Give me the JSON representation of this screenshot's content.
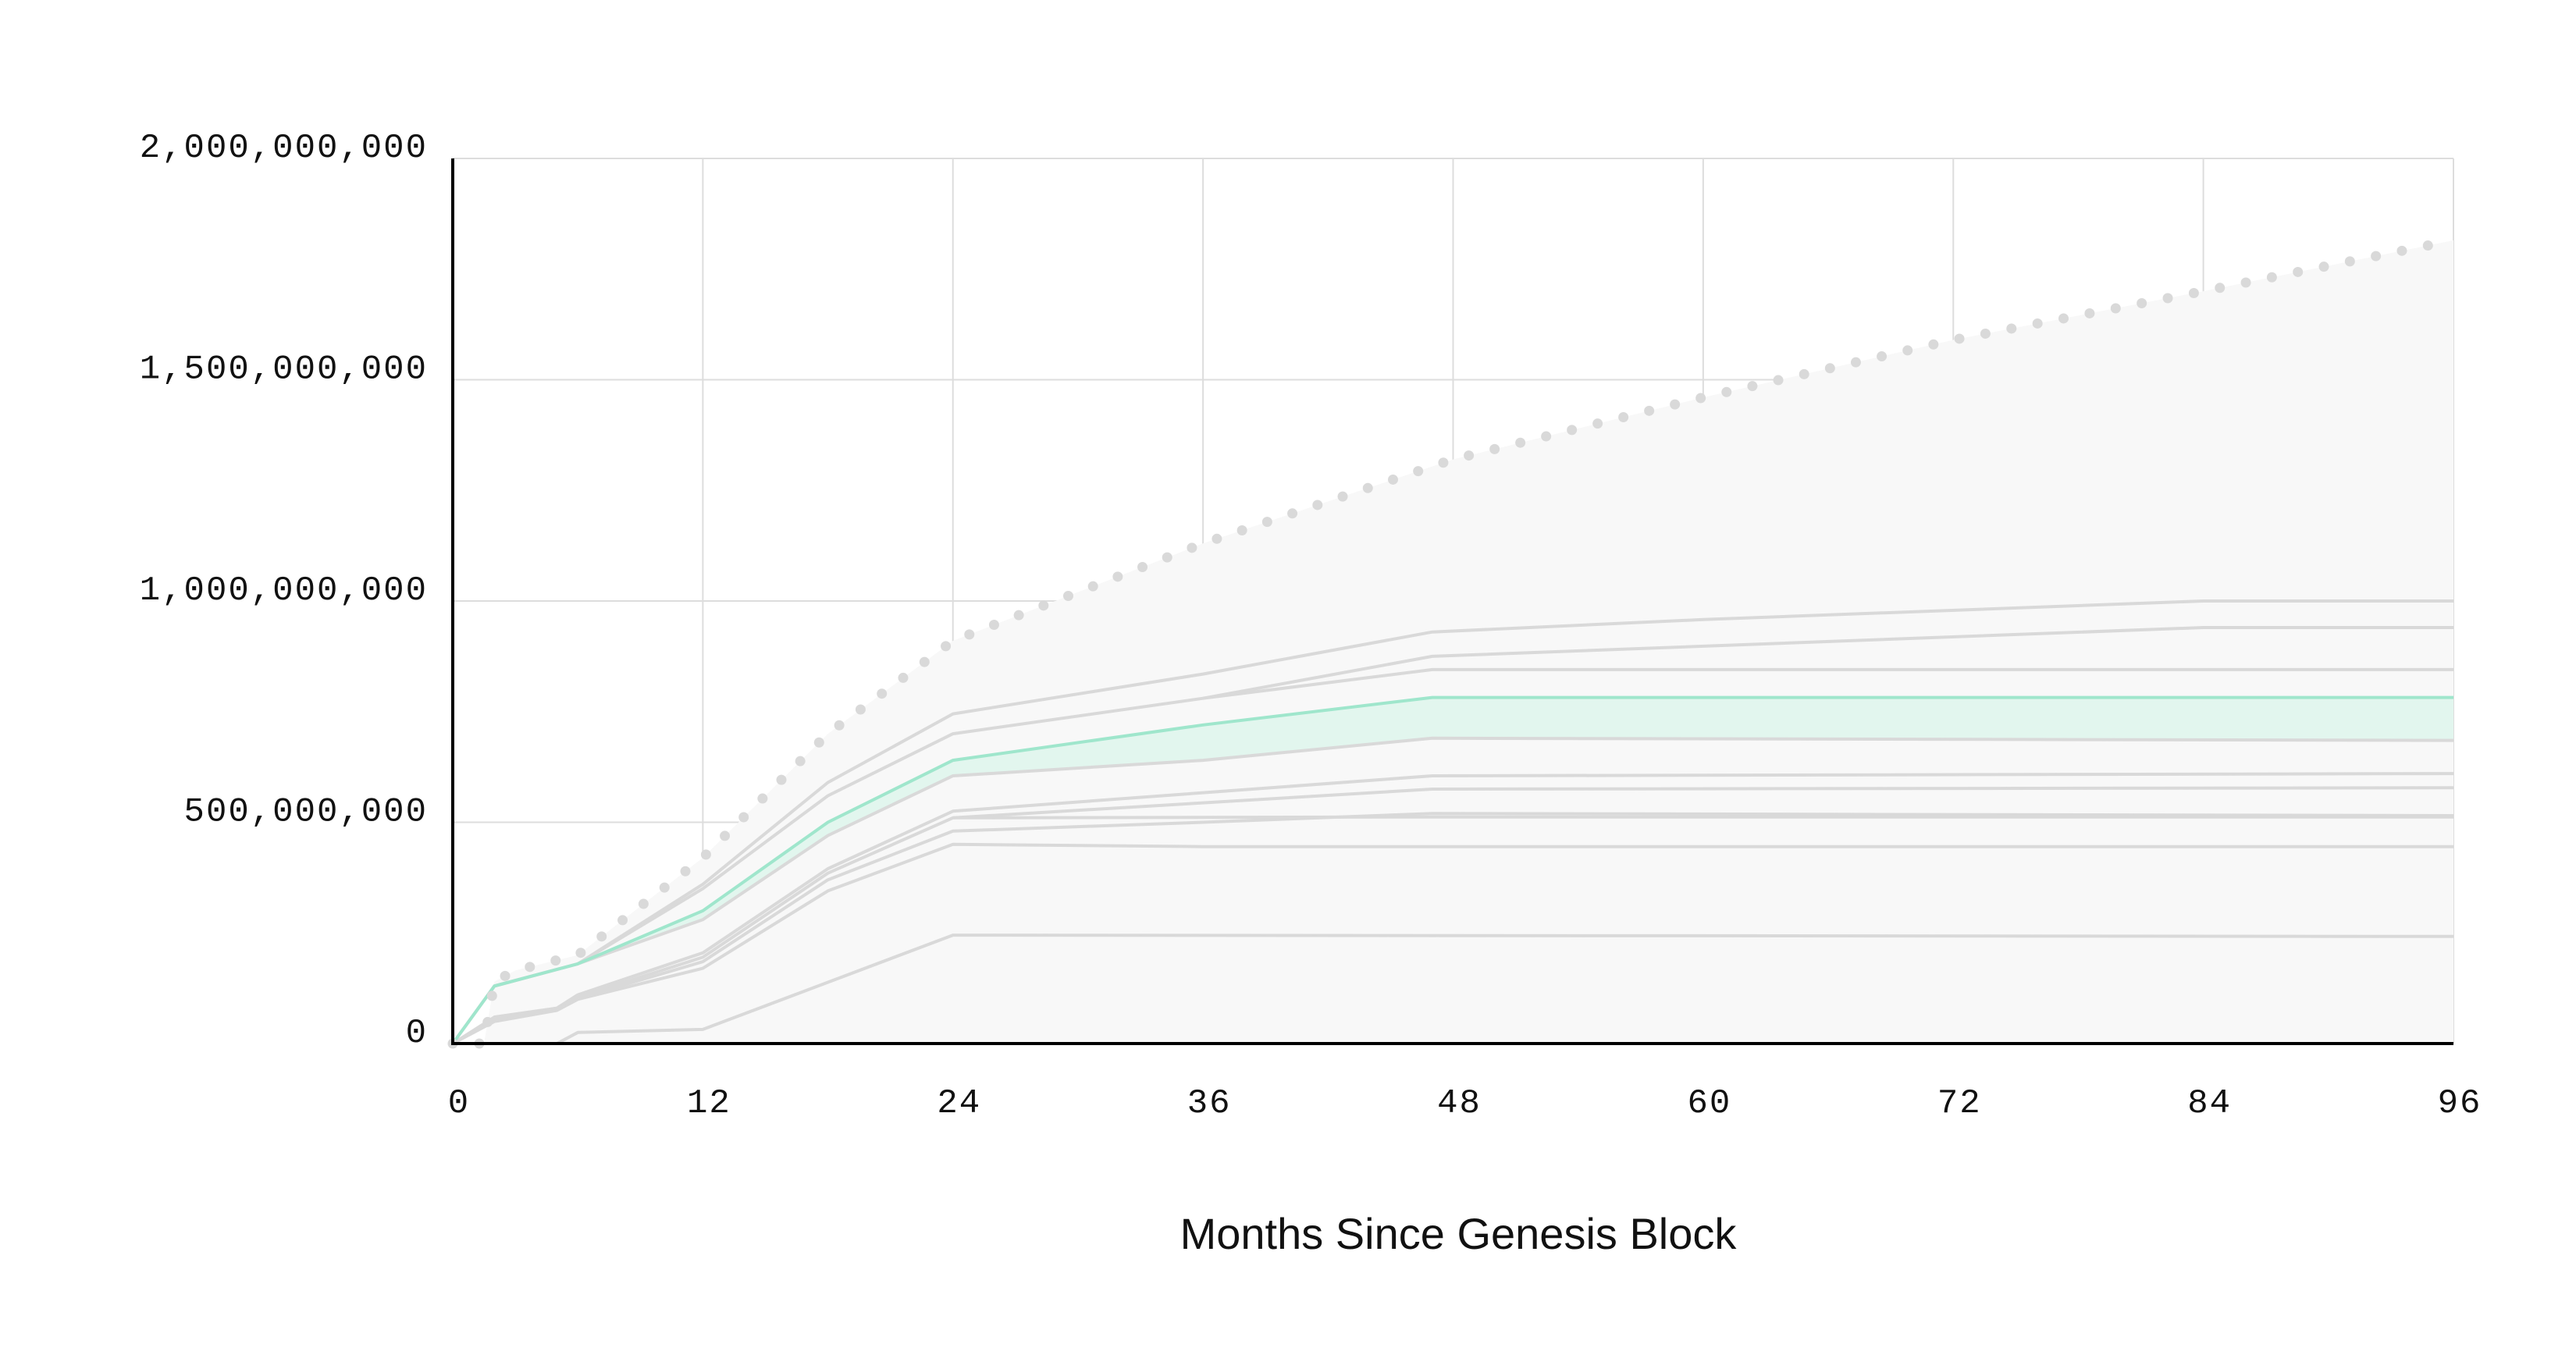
{
  "chart_data": {
    "type": "line",
    "title": "",
    "xlabel": "Months Since Genesis Block",
    "ylabel": "",
    "xlim": [
      0,
      96
    ],
    "ylim": [
      0,
      2000000000
    ],
    "x_ticks": [
      0,
      12,
      24,
      36,
      48,
      60,
      72,
      84,
      96
    ],
    "y_ticks": [
      0,
      500000000,
      1000000000,
      1500000000,
      2000000000
    ],
    "y_tick_labels": [
      "0",
      "500,000,000",
      "1,000,000,000",
      "1,500,000,000",
      "2,000,000,000"
    ],
    "x_tick_labels": [
      "0",
      "12",
      "24",
      "36",
      "48",
      "60",
      "72",
      "84",
      "96"
    ],
    "grid": true,
    "colors": {
      "highlight": "#9fe6cc",
      "highlight_fill": "#e2f6ee",
      "lines": "#d9d9d9",
      "supply_fill": "#f8f8f8",
      "dots": "#d9d9d9",
      "axis": "#000000",
      "grid": "#dddddd"
    },
    "total_supply_dotted": [
      [
        0,
        0
      ],
      [
        1.5,
        0
      ],
      [
        2,
        140000000
      ],
      [
        3,
        165000000
      ],
      [
        6,
        200000000
      ],
      [
        12,
        420000000
      ],
      [
        18,
        700000000
      ],
      [
        24,
        910000000
      ],
      [
        36,
        1130000000
      ],
      [
        48,
        1320000000
      ],
      [
        60,
        1460000000
      ],
      [
        72,
        1590000000
      ],
      [
        84,
        1700000000
      ],
      [
        96,
        1815000000
      ]
    ],
    "highlight_band": {
      "upper": [
        [
          0,
          0
        ],
        [
          2,
          130000000
        ],
        [
          6,
          180000000
        ],
        [
          12,
          300000000
        ],
        [
          18,
          500000000
        ],
        [
          24,
          640000000
        ],
        [
          36,
          720000000
        ],
        [
          47,
          782000000
        ],
        [
          96,
          782000000
        ]
      ],
      "lower": [
        [
          0,
          0
        ],
        [
          2,
          130000000
        ],
        [
          6,
          180000000
        ],
        [
          12,
          280000000
        ],
        [
          18,
          470000000
        ],
        [
          24,
          605000000
        ],
        [
          36,
          640000000
        ],
        [
          47,
          690000000
        ],
        [
          96,
          685000000
        ]
      ]
    },
    "series": [
      {
        "values": [
          [
            0,
            0
          ],
          [
            2,
            130000000
          ],
          [
            6,
            180000000
          ],
          [
            12,
            360000000
          ],
          [
            18,
            590000000
          ],
          [
            24,
            745000000
          ],
          [
            36,
            835000000
          ],
          [
            47,
            930000000
          ],
          [
            60,
            958000000
          ],
          [
            84,
            1000000000
          ],
          [
            96,
            1000000000
          ]
        ]
      },
      {
        "values": [
          [
            0,
            0
          ],
          [
            2,
            130000000
          ],
          [
            6,
            180000000
          ],
          [
            12,
            350000000
          ],
          [
            18,
            560000000
          ],
          [
            24,
            700000000
          ],
          [
            36,
            780000000
          ],
          [
            47,
            875000000
          ],
          [
            84,
            940000000
          ],
          [
            96,
            940000000
          ]
        ]
      },
      {
        "values": [
          [
            36,
            780000000
          ],
          [
            47,
            845000000
          ],
          [
            96,
            845000000
          ]
        ]
      },
      {
        "values": [
          [
            0,
            0
          ],
          [
            2,
            60000000
          ],
          [
            5,
            80000000
          ],
          [
            6,
            110000000
          ],
          [
            12,
            205000000
          ],
          [
            18,
            395000000
          ],
          [
            24,
            525000000
          ],
          [
            47,
            605000000
          ],
          [
            96,
            610000000
          ]
        ]
      },
      {
        "values": [
          [
            0,
            0
          ],
          [
            2,
            55000000
          ],
          [
            5,
            78000000
          ],
          [
            6,
            105000000
          ],
          [
            12,
            195000000
          ],
          [
            18,
            385000000
          ],
          [
            24,
            510000000
          ],
          [
            47,
            575000000
          ],
          [
            96,
            578000000
          ]
        ]
      },
      {
        "values": [
          [
            0,
            0
          ],
          [
            2,
            52000000
          ],
          [
            5,
            76000000
          ],
          [
            6,
            102000000
          ],
          [
            12,
            185000000
          ],
          [
            18,
            370000000
          ],
          [
            24,
            480000000
          ],
          [
            36,
            500000000
          ],
          [
            47,
            520000000
          ],
          [
            96,
            515000000
          ]
        ]
      },
      {
        "values": [
          [
            24,
            510000000
          ],
          [
            47,
            512000000
          ],
          [
            96,
            512000000
          ]
        ]
      },
      {
        "values": [
          [
            0,
            0
          ],
          [
            2,
            50000000
          ],
          [
            5,
            75000000
          ],
          [
            6,
            100000000
          ],
          [
            12,
            170000000
          ],
          [
            18,
            345000000
          ],
          [
            24,
            450000000
          ],
          [
            36,
            445000000
          ],
          [
            96,
            445000000
          ]
        ]
      },
      {
        "values": [
          [
            0,
            0
          ],
          [
            5,
            0
          ],
          [
            6,
            25000000
          ],
          [
            12,
            32000000
          ],
          [
            24,
            245000000
          ],
          [
            96,
            242000000
          ]
        ]
      }
    ]
  }
}
